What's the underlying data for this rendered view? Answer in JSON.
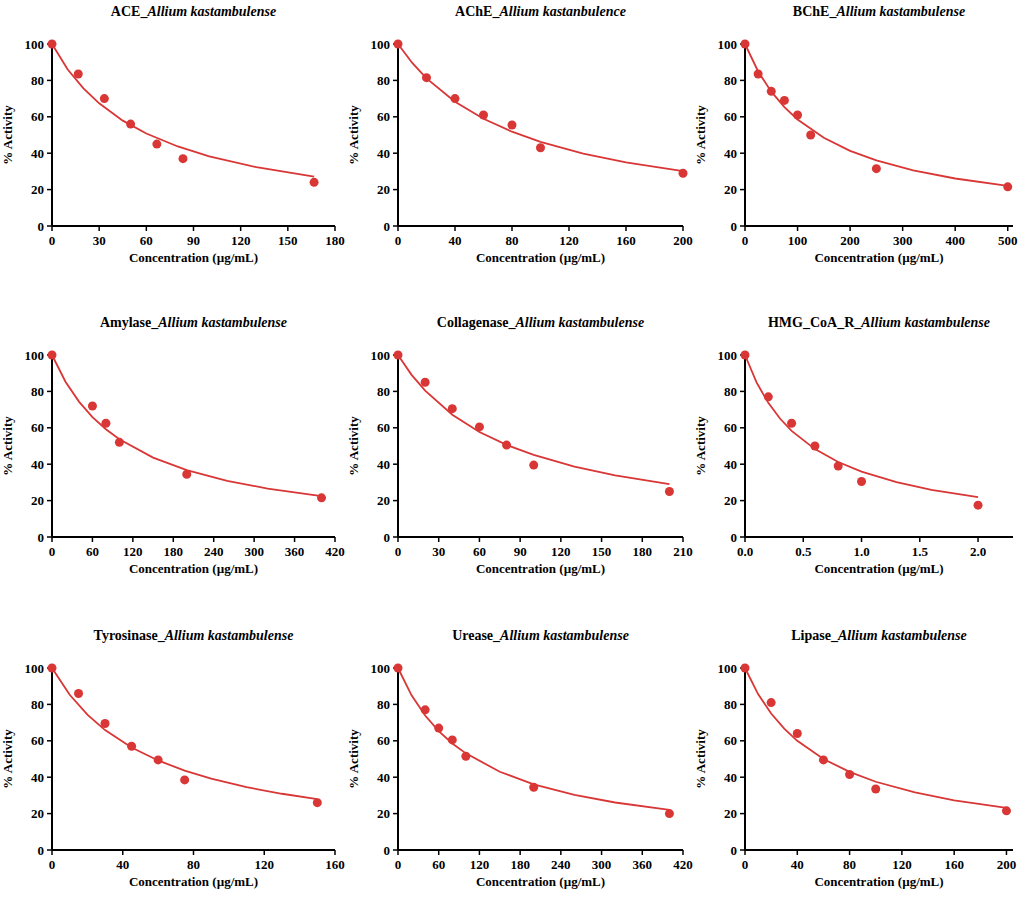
{
  "chart_data": [
    {
      "type": "scatter",
      "title": "ACE_Allium kastambulense",
      "x_label": "Concentration (µg/mL)",
      "y_label": "% Activity",
      "xlim": [
        0,
        180
      ],
      "xticks": [
        0,
        30,
        60,
        90,
        120,
        150,
        180
      ],
      "ylim": [
        0,
        100
      ],
      "yticks": [
        0,
        20,
        40,
        60,
        80,
        100
      ],
      "series": [
        {
          "type": "scatter",
          "marker": "circle",
          "color": "#d93636",
          "x": [
            0,
            16.7,
            33.3,
            50,
            66.7,
            83.3,
            166.7
          ],
          "values": [
            100,
            83.5,
            70,
            56,
            45,
            37,
            24
          ]
        },
        {
          "type": "line",
          "line_style": "solid",
          "color": "#d93636",
          "x": [
            0,
            10,
            20,
            30,
            45,
            60,
            80,
            100,
            130,
            166.7
          ],
          "values": [
            100,
            86,
            75.6,
            67.4,
            57.9,
            50.8,
            43.7,
            38.3,
            32.3,
            27.1
          ]
        }
      ]
    },
    {
      "type": "scatter",
      "title": "AChE_Allium kastanbulence",
      "x_label": "Concentration (µg/mL)",
      "y_label": "% Activity",
      "xlim": [
        0,
        200
      ],
      "xticks": [
        0,
        40,
        80,
        120,
        160,
        200
      ],
      "ylim": [
        0,
        100
      ],
      "yticks": [
        0,
        20,
        40,
        60,
        80,
        100
      ],
      "series": [
        {
          "type": "scatter",
          "marker": "circle",
          "color": "#d93636",
          "x": [
            0,
            20,
            40,
            60,
            80,
            100,
            200
          ],
          "values": [
            100,
            81.5,
            70,
            61,
            55.5,
            43,
            29
          ]
        },
        {
          "type": "line",
          "line_style": "solid",
          "color": "#d93636",
          "x": [
            0,
            10,
            20,
            40,
            60,
            80,
            100,
            130,
            160,
            200
          ],
          "values": [
            100,
            89.6,
            81.1,
            68.3,
            58.9,
            51.8,
            46.2,
            39.8,
            35,
            30.1
          ]
        }
      ]
    },
    {
      "type": "scatter",
      "title": "BChE_Allium kastambulense",
      "x_label": "Concentration (µg/mL)",
      "y_label": "% Activity",
      "xlim": [
        0,
        510
      ],
      "xticks": [
        0,
        100,
        200,
        300,
        400,
        500
      ],
      "ylim": [
        0,
        100
      ],
      "yticks": [
        0,
        20,
        40,
        60,
        80,
        100
      ],
      "series": [
        {
          "type": "scatter",
          "marker": "circle",
          "color": "#d93636",
          "x": [
            0,
            25,
            50,
            75,
            100,
            125,
            250,
            500
          ],
          "values": [
            100,
            83.5,
            74,
            69,
            61,
            50,
            31.5,
            21.5
          ]
        },
        {
          "type": "line",
          "line_style": "solid",
          "color": "#d93636",
          "x": [
            0,
            25,
            50,
            75,
            100,
            150,
            200,
            250,
            320,
            400,
            500
          ],
          "values": [
            100,
            84.9,
            73.8,
            65.3,
            58.5,
            48.5,
            41.3,
            36.1,
            30.6,
            26.1,
            22
          ]
        }
      ]
    },
    {
      "type": "scatter",
      "title": "Amylase_Allium kastambulense",
      "x_label": "Concentration (µg/mL)",
      "y_label": "% Activity",
      "xlim": [
        0,
        420
      ],
      "xticks": [
        0,
        60,
        120,
        180,
        240,
        300,
        360,
        420
      ],
      "ylim": [
        0,
        100
      ],
      "yticks": [
        0,
        20,
        40,
        60,
        80,
        100
      ],
      "series": [
        {
          "type": "scatter",
          "marker": "circle",
          "color": "#d93636",
          "x": [
            0,
            60,
            80,
            100,
            200,
            400
          ],
          "values": [
            100,
            72,
            62.5,
            52,
            34.5,
            21.5
          ]
        },
        {
          "type": "line",
          "line_style": "solid",
          "color": "#d93636",
          "x": [
            0,
            20,
            40,
            60,
            80,
            100,
            150,
            200,
            260,
            320,
            400
          ],
          "values": [
            100,
            85.3,
            74.4,
            65.9,
            59.2,
            53.7,
            43.6,
            36.7,
            30.9,
            26.6,
            22.5
          ]
        }
      ]
    },
    {
      "type": "scatter",
      "title": "Collagenase_Allium kastambulense",
      "x_label": "Concentration (µg/mL)",
      "y_label": "% Activity",
      "xlim": [
        0,
        210
      ],
      "xticks": [
        0,
        30,
        60,
        90,
        120,
        150,
        180,
        210
      ],
      "ylim": [
        0,
        100
      ],
      "yticks": [
        0,
        20,
        40,
        60,
        80,
        100
      ],
      "series": [
        {
          "type": "scatter",
          "marker": "circle",
          "color": "#d93636",
          "x": [
            0,
            20,
            40,
            60,
            80,
            100,
            200
          ],
          "values": [
            100,
            85,
            70.5,
            60.5,
            50.5,
            39.5,
            25
          ]
        },
        {
          "type": "line",
          "line_style": "solid",
          "color": "#d93636",
          "x": [
            0,
            10,
            20,
            40,
            60,
            80,
            100,
            130,
            160,
            200
          ],
          "values": [
            100,
            89.1,
            80.4,
            67.2,
            57.7,
            50.6,
            45.1,
            38.7,
            33.9,
            29.1
          ]
        }
      ]
    },
    {
      "type": "scatter",
      "title": "HMG_CoA_R_Allium kastambulense",
      "x_label": "Concentration (µg/mL)",
      "y_label": "% Activity",
      "xlim": [
        0,
        2.3
      ],
      "xticks": [
        {
          "value": 0,
          "label": "0.0"
        },
        0.5,
        {
          "value": 1,
          "label": "1.0"
        },
        1.5,
        {
          "value": 2,
          "label": "2.0"
        }
      ],
      "ylim": [
        0,
        100
      ],
      "yticks": [
        0,
        20,
        40,
        60,
        80,
        100
      ],
      "series": [
        {
          "type": "scatter",
          "marker": "circle",
          "color": "#d93636",
          "x": [
            0,
            0.2,
            0.4,
            0.6,
            0.8,
            1.0,
            2.0
          ],
          "values": [
            100,
            77,
            62.5,
            50,
            39,
            30.5,
            17.5
          ]
        },
        {
          "type": "line",
          "line_style": "solid",
          "color": "#d93636",
          "x": [
            0,
            0.1,
            0.2,
            0.3,
            0.4,
            0.6,
            0.8,
            1.0,
            1.3,
            1.6,
            2.0
          ],
          "values": [
            100,
            84.8,
            73.7,
            65.1,
            58.3,
            48.3,
            41.2,
            35.9,
            30.1,
            25.9,
            21.9
          ]
        }
      ]
    },
    {
      "type": "scatter",
      "title": "Tyrosinase_Allium kastambulense",
      "x_label": "Concentration (µg/mL)",
      "y_label": "% Activity",
      "xlim": [
        0,
        160
      ],
      "xticks": [
        0,
        40,
        80,
        120,
        160
      ],
      "ylim": [
        0,
        100
      ],
      "yticks": [
        0,
        20,
        40,
        60,
        80,
        100
      ],
      "series": [
        {
          "type": "scatter",
          "marker": "circle",
          "color": "#d93636",
          "x": [
            0,
            15,
            30,
            45,
            60,
            75,
            150
          ],
          "values": [
            100,
            86,
            69.5,
            57,
            49.5,
            38.5,
            26
          ]
        },
        {
          "type": "line",
          "line_style": "solid",
          "color": "#d93636",
          "x": [
            0,
            10,
            20,
            30,
            45,
            60,
            75,
            90,
            110,
            130,
            150
          ],
          "values": [
            100,
            85.3,
            74.4,
            65.9,
            56.3,
            49.2,
            43.6,
            39.2,
            34.5,
            30.9,
            27.9
          ]
        }
      ]
    },
    {
      "type": "scatter",
      "title": "Urease_Allium kastambulense",
      "x_label": "Concentration (µg/mL)",
      "y_label": "% Activity",
      "xlim": [
        0,
        420
      ],
      "xticks": [
        0,
        60,
        120,
        180,
        240,
        300,
        360,
        420
      ],
      "ylim": [
        0,
        100
      ],
      "yticks": [
        0,
        20,
        40,
        60,
        80,
        100
      ],
      "series": [
        {
          "type": "scatter",
          "marker": "circle",
          "color": "#d93636",
          "x": [
            0,
            40,
            60,
            80,
            100,
            200,
            400
          ],
          "values": [
            100,
            77,
            67,
            60.5,
            51.5,
            34.5,
            20
          ]
        },
        {
          "type": "line",
          "line_style": "solid",
          "color": "#d93636",
          "x": [
            0,
            20,
            40,
            60,
            80,
            100,
            150,
            200,
            260,
            320,
            400
          ],
          "values": [
            100,
            85,
            73.9,
            65.3,
            58.5,
            53.1,
            43,
            36.1,
            30.3,
            26.1,
            22
          ]
        }
      ]
    },
    {
      "type": "scatter",
      "title": "Lipase_Allium kastambulense",
      "x_label": "Concentration (µg/mL)",
      "y_label": "% Activity",
      "xlim": [
        0,
        205
      ],
      "xticks": [
        0,
        40,
        80,
        120,
        160,
        200
      ],
      "ylim": [
        0,
        100
      ],
      "yticks": [
        0,
        20,
        40,
        60,
        80,
        100
      ],
      "series": [
        {
          "type": "scatter",
          "marker": "circle",
          "color": "#d93636",
          "x": [
            0,
            20,
            40,
            60,
            80,
            100,
            200
          ],
          "values": [
            100,
            81,
            64,
            49.5,
            41.5,
            33.5,
            21.5
          ]
        },
        {
          "type": "line",
          "line_style": "solid",
          "color": "#d93636",
          "x": [
            0,
            10,
            20,
            30,
            40,
            60,
            80,
            100,
            130,
            160,
            200
          ],
          "values": [
            100,
            85.7,
            75,
            66.7,
            60,
            50,
            42.9,
            37.5,
            31.6,
            27.3,
            23.1
          ]
        }
      ]
    }
  ]
}
